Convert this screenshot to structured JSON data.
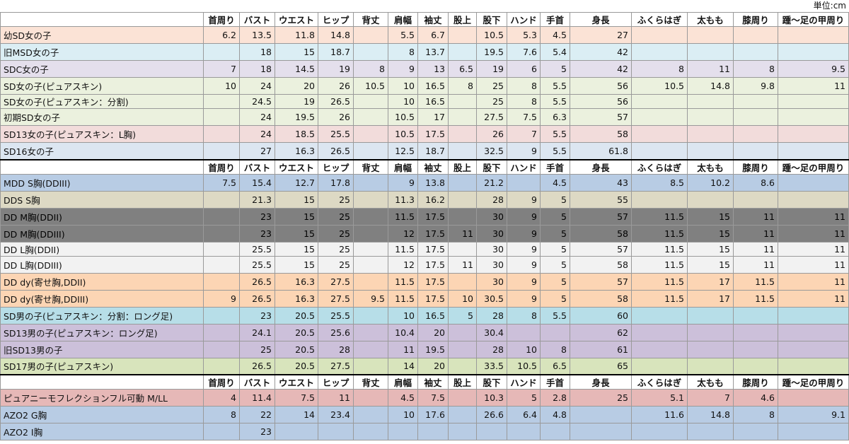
{
  "unit_label": "単位:cm",
  "columns": [
    "首周り",
    "バスト",
    "ウエスト",
    "ヒップ",
    "背丈",
    "肩幅",
    "袖丈",
    "股上",
    "股下",
    "ハンド",
    "手首",
    "身長",
    "ふくらはぎ",
    "太もも",
    "膝周り",
    "踵～足の甲周り"
  ],
  "colors": {
    "peach": "#fbe3d6",
    "lightblue": "#dbeef4",
    "lavender": "#e4dfec",
    "green": "#ebf1de",
    "pink": "#f2dcdb",
    "blue": "#dce6f1",
    "periwinkle": "#b8cce4",
    "khaki": "#ddd9c4",
    "darkgray": "#808080",
    "lightgray": "#f2f2f2",
    "orange": "#fcd5b4",
    "cyan": "#b7dee8",
    "purple": "#ccc0da",
    "olive": "#d8e4bc",
    "salmon": "#e6b8b7",
    "steel": "#b8cce4"
  },
  "blocks": [
    {
      "header": true,
      "rows": [
        {
          "name": "幼SD女の子",
          "color": "peach",
          "values": [
            "6.2",
            "13.5",
            "11.8",
            "14.8",
            "",
            "5.5",
            "6.7",
            "",
            "10.5",
            "5.3",
            "4.5",
            "27",
            "",
            "",
            "",
            ""
          ]
        },
        {
          "name": "旧MSD女の子",
          "color": "lightblue",
          "values": [
            "",
            "18",
            "15",
            "18.7",
            "",
            "8",
            "13.7",
            "",
            "19.5",
            "7.6",
            "5.4",
            "42",
            "",
            "",
            "",
            ""
          ]
        },
        {
          "name": "SDC女の子",
          "color": "lavender",
          "values": [
            "7",
            "18",
            "14.5",
            "19",
            "8",
            "9",
            "13",
            "6.5",
            "19",
            "6",
            "5",
            "42",
            "8",
            "11",
            "8",
            "9.5"
          ]
        },
        {
          "name": "SD女の子(ピュアスキン)",
          "color": "green",
          "values": [
            "10",
            "24",
            "20",
            "26",
            "10.5",
            "10",
            "16.5",
            "8",
            "25",
            "8",
            "5.5",
            "56",
            "10.5",
            "14.8",
            "9.8",
            "11"
          ]
        },
        {
          "name": "SD女の子(ピュアスキン：分割)",
          "color": "green",
          "values": [
            "",
            "24.5",
            "19",
            "26.5",
            "",
            "10",
            "16.5",
            "",
            "25",
            "8",
            "5.5",
            "56",
            "",
            "",
            "",
            ""
          ]
        },
        {
          "name": "初期SD女の子",
          "color": "green",
          "values": [
            "",
            "24",
            "19.5",
            "26",
            "",
            "10.5",
            "17",
            "",
            "27.5",
            "7.5",
            "6.3",
            "57",
            "",
            "",
            "",
            ""
          ]
        },
        {
          "name": "SD13女の子(ピュアスキン：L胸)",
          "color": "pink",
          "values": [
            "",
            "24",
            "18.5",
            "25.5",
            "",
            "10.5",
            "17.5",
            "",
            "26",
            "7",
            "5.5",
            "58",
            "",
            "",
            "",
            ""
          ]
        },
        {
          "name": "SD16女の子",
          "color": "blue",
          "values": [
            "",
            "27",
            "16.3",
            "26.5",
            "",
            "12.5",
            "18.7",
            "",
            "32.5",
            "9",
            "5.5",
            "61.8",
            "",
            "",
            "",
            ""
          ]
        }
      ]
    },
    {
      "header": true,
      "rows": [
        {
          "name": "MDD S胸(DDIII)",
          "color": "periwinkle",
          "values": [
            "7.5",
            "15.4",
            "12.7",
            "17.8",
            "",
            "9",
            "13.8",
            "",
            "21.2",
            "",
            "4.5",
            "43",
            "8.5",
            "10.2",
            "8.6",
            ""
          ]
        },
        {
          "name": "DDS S胸",
          "color": "khaki",
          "values": [
            "",
            "21.3",
            "15",
            "25",
            "",
            "11.3",
            "16.2",
            "",
            "28",
            "9",
            "5",
            "55",
            "",
            "",
            "",
            ""
          ]
        },
        {
          "name": "DD M胸(DDII)",
          "color": "darkgray",
          "values": [
            "",
            "23",
            "15",
            "25",
            "",
            "11.5",
            "17.5",
            "",
            "30",
            "9",
            "5",
            "57",
            "11.5",
            "15",
            "11",
            "11"
          ]
        },
        {
          "name": "DD M胸(DDIII)",
          "color": "darkgray",
          "values": [
            "",
            "23",
            "15",
            "25",
            "",
            "12",
            "17.5",
            "11",
            "30",
            "9",
            "5",
            "58",
            "11.5",
            "15",
            "11",
            "11"
          ]
        },
        {
          "name": "DD L胸(DDII)",
          "color": "lightgray",
          "values": [
            "",
            "25.5",
            "15",
            "25",
            "",
            "11.5",
            "17.5",
            "",
            "30",
            "9",
            "5",
            "57",
            "11.5",
            "15",
            "11",
            "11"
          ]
        },
        {
          "name": "DD L胸(DDIII)",
          "color": "lightgray",
          "values": [
            "",
            "25.5",
            "15",
            "25",
            "",
            "12",
            "17.5",
            "11",
            "30",
            "9",
            "5",
            "58",
            "11.5",
            "15",
            "11",
            "11"
          ]
        },
        {
          "name": "DD dy(寄せ胸,DDII)",
          "color": "orange",
          "values": [
            "",
            "26.5",
            "16.3",
            "27.5",
            "",
            "11.5",
            "17.5",
            "",
            "30",
            "9",
            "5",
            "57",
            "11.5",
            "17",
            "11.5",
            "11"
          ]
        },
        {
          "name": "DD dy(寄せ胸,DDIII)",
          "color": "orange",
          "values": [
            "9",
            "26.5",
            "16.3",
            "27.5",
            "9.5",
            "11.5",
            "17.5",
            "10",
            "30.5",
            "9",
            "5",
            "58",
            "11.5",
            "17",
            "11.5",
            "11"
          ]
        },
        {
          "name": "SD男の子(ピュアスキン：分割：ロング足)",
          "color": "cyan",
          "values": [
            "",
            "23",
            "20.5",
            "25.5",
            "",
            "10",
            "16.5",
            "5",
            "28",
            "8",
            "5.5",
            "60",
            "",
            "",
            "",
            ""
          ]
        },
        {
          "name": "SD13男の子(ピュアスキン：ロング足)",
          "color": "purple",
          "values": [
            "",
            "24.1",
            "20.5",
            "25.6",
            "",
            "10.4",
            "20",
            "",
            "30.4",
            "",
            "",
            "62",
            "",
            "",
            "",
            ""
          ]
        },
        {
          "name": "旧SD13男の子",
          "color": "purple",
          "values": [
            "",
            "25",
            "20.5",
            "28",
            "",
            "11",
            "19.5",
            "",
            "28",
            "10",
            "8",
            "61",
            "",
            "",
            "",
            ""
          ]
        },
        {
          "name": "SD17男の子(ピュアスキン)",
          "color": "olive",
          "values": [
            "",
            "26.5",
            "20.5",
            "27.5",
            "",
            "14",
            "20",
            "",
            "33.5",
            "10.5",
            "6.5",
            "65",
            "",
            "",
            "",
            ""
          ]
        }
      ]
    },
    {
      "header": true,
      "rows": [
        {
          "name": "ピュアニーモフレクションフル可動 M/LL",
          "color": "salmon",
          "values": [
            "4",
            "11.4",
            "7.5",
            "11",
            "",
            "4.5",
            "7.5",
            "",
            "10.3",
            "5",
            "2.8",
            "25",
            "5.1",
            "7",
            "4.6",
            ""
          ]
        },
        {
          "name": "AZO2 G胸",
          "color": "steel",
          "values": [
            "8",
            "22",
            "14",
            "23.4",
            "",
            "10",
            "17.6",
            "",
            "26.6",
            "6.4",
            "4.8",
            "",
            "11.6",
            "14.8",
            "8",
            "9.1"
          ]
        },
        {
          "name": "AZO2 I胸",
          "color": "steel",
          "values": [
            "",
            "23",
            "",
            "",
            "",
            "",
            "",
            "",
            "",
            "",
            "",
            "",
            "",
            "",
            "",
            ""
          ]
        }
      ]
    }
  ]
}
